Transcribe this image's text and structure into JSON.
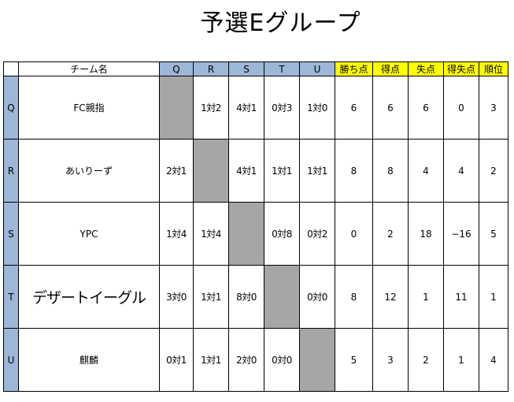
{
  "title": "予選Eグループ",
  "header": {
    "name_label": "チーム名",
    "opponents": [
      "Q",
      "R",
      "S",
      "T",
      "U"
    ],
    "stats": [
      "勝ち点",
      "得点",
      "失点",
      "得失点",
      "順位"
    ]
  },
  "colors": {
    "header_blue": "#9cb7d8",
    "header_yellow": "#ffff00",
    "self_cell_gray": "#a6a6a6"
  },
  "teams": [
    {
      "code": "Q",
      "name": "FC親指",
      "results": [
        "",
        "1対2",
        "4対1",
        "0対3",
        "1対0"
      ],
      "points": "6",
      "goals_for": "6",
      "goals_against": "6",
      "goal_diff": "0",
      "rank": "3"
    },
    {
      "code": "R",
      "name": "あいりーず",
      "results": [
        "2対1",
        "",
        "4対1",
        "1対1",
        "1対1"
      ],
      "points": "8",
      "goals_for": "8",
      "goals_against": "4",
      "goal_diff": "4",
      "rank": "2"
    },
    {
      "code": "S",
      "name": "YPC",
      "results": [
        "1対4",
        "1対4",
        "",
        "0対8",
        "0対2"
      ],
      "points": "0",
      "goals_for": "2",
      "goals_against": "18",
      "goal_diff": "−16",
      "rank": "5"
    },
    {
      "code": "T",
      "name": "デザートイーグル",
      "results": [
        "3対0",
        "1対1",
        "8対0",
        "",
        "0対0"
      ],
      "points": "8",
      "goals_for": "12",
      "goals_against": "1",
      "goal_diff": "11",
      "rank": "1"
    },
    {
      "code": "U",
      "name": "麒麟",
      "results": [
        "0対1",
        "1対1",
        "2対0",
        "0対0",
        ""
      ],
      "points": "5",
      "goals_for": "3",
      "goals_against": "2",
      "goal_diff": "1",
      "rank": "4"
    }
  ]
}
